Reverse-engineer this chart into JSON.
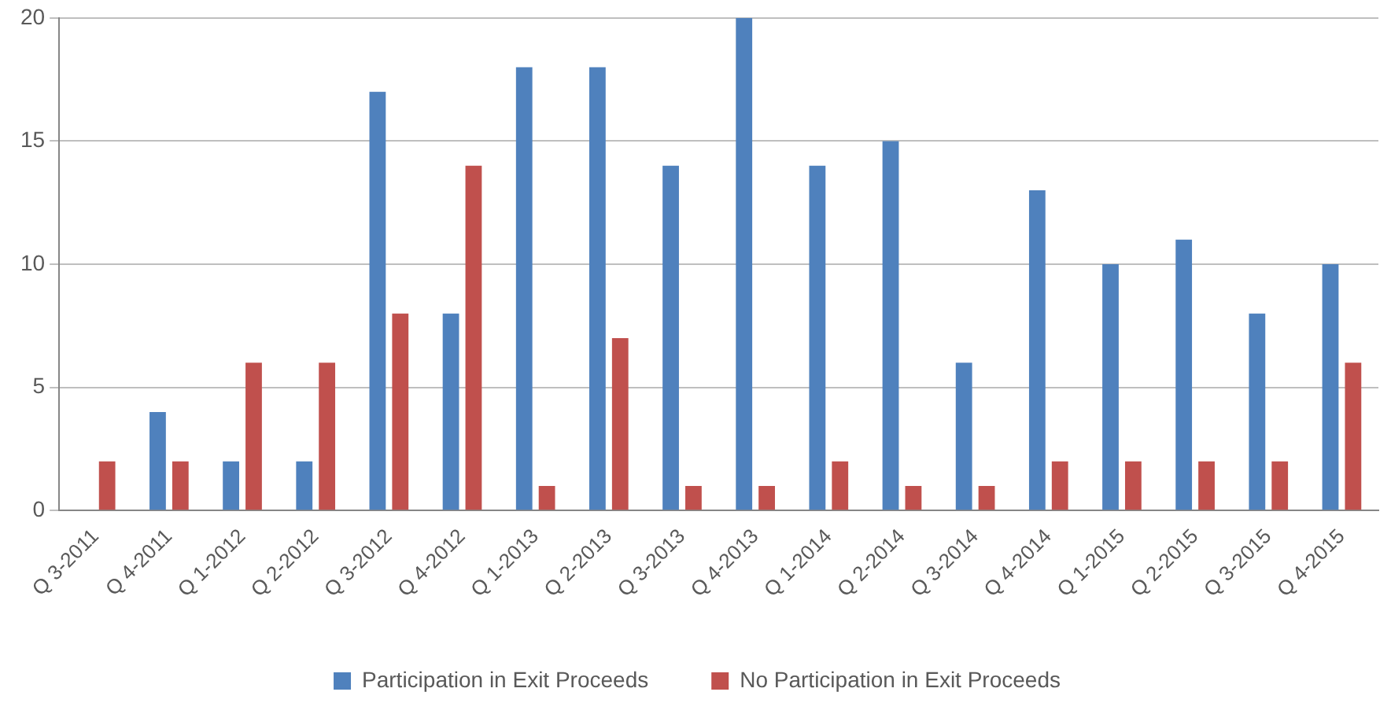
{
  "chart_data": {
    "type": "bar",
    "categories": [
      "Q 3-2011",
      "Q 4-2011",
      "Q 1-2012",
      "Q 2-2012",
      "Q 3-2012",
      "Q 4-2012",
      "Q 1-2013",
      "Q 2-2013",
      "Q 3-2013",
      "Q 4-2013",
      "Q 1-2014",
      "Q 2-2014",
      "Q 3-2014",
      "Q 4-2014",
      "Q 1-2015",
      "Q 2-2015",
      "Q 3-2015",
      "Q 4-2015"
    ],
    "series": [
      {
        "name": "Participation in Exit Proceeds",
        "color": "#4f81bd",
        "values": [
          0,
          4,
          2,
          2,
          17,
          8,
          18,
          18,
          14,
          20,
          14,
          15,
          6,
          13,
          10,
          11,
          8,
          10
        ]
      },
      {
        "name": "No Participation in Exit Proceeds",
        "color": "#c0504d",
        "values": [
          2,
          2,
          6,
          6,
          8,
          14,
          1,
          7,
          1,
          1,
          2,
          1,
          1,
          2,
          2,
          2,
          2,
          6
        ]
      }
    ],
    "ylim": [
      0,
      20
    ],
    "yticks": [
      0,
      5,
      10,
      15,
      20
    ],
    "grid": "y",
    "legend": "bottom"
  }
}
